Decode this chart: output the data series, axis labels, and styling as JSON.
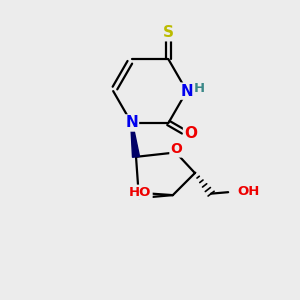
{
  "background_color": "#ececec",
  "bond_color": "#000000",
  "atom_colors": {
    "N": "#0000ee",
    "O": "#ee0000",
    "S": "#bbbb00",
    "H": "#3a8888",
    "C": "#000000"
  },
  "font_size_atoms": 11,
  "font_size_h": 9.5,
  "line_width": 1.6,
  "figsize": [
    3.0,
    3.0
  ],
  "dpi": 100
}
